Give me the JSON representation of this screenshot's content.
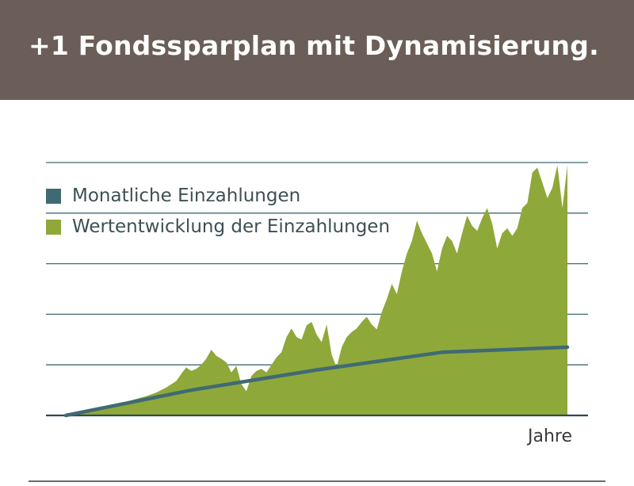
{
  "header": {
    "title": "+1 Fondssparplan mit Dynamisierung."
  },
  "legend": [
    {
      "label": "Monatliche Einzahlungen",
      "color": "#3f6a74"
    },
    {
      "label": "Wertentwicklung der Einzahlungen",
      "color": "#8fa83a"
    }
  ],
  "chart_data": {
    "type": "area",
    "xlabel": "Jahre",
    "ylabel": "",
    "grid": true,
    "gridlines_count": 5,
    "ylim": [
      0,
      5
    ],
    "xlim": [
      0,
      100
    ],
    "legend_position": "top-left",
    "series": [
      {
        "name": "Wertentwicklung der Einzahlungen",
        "type": "area",
        "color": "#8fa83a",
        "x": [
          0,
          4,
          8,
          12,
          16,
          18,
          20,
          22,
          23,
          24,
          25,
          26,
          27,
          28,
          29,
          30,
          31,
          32,
          33,
          34,
          35,
          36,
          37,
          38,
          39,
          40,
          41,
          42,
          43,
          44,
          45,
          46,
          47,
          48,
          49,
          50,
          51,
          52,
          53,
          54,
          55,
          56,
          57,
          58,
          59,
          60,
          61,
          62,
          63,
          64,
          65,
          66,
          67,
          68,
          69,
          70,
          71,
          72,
          73,
          74,
          75,
          76,
          77,
          78,
          79,
          80,
          81,
          82,
          83,
          84,
          85,
          86,
          87,
          88,
          89,
          90,
          91,
          92,
          93,
          94,
          95,
          96,
          97,
          98,
          99,
          100
        ],
        "values": [
          0.02,
          0.08,
          0.17,
          0.27,
          0.38,
          0.45,
          0.55,
          0.68,
          0.82,
          0.95,
          0.88,
          0.92,
          1.0,
          1.12,
          1.3,
          1.18,
          1.12,
          1.05,
          0.85,
          0.98,
          0.62,
          0.48,
          0.78,
          0.88,
          0.92,
          0.85,
          1.0,
          1.15,
          1.25,
          1.55,
          1.72,
          1.55,
          1.5,
          1.78,
          1.85,
          1.6,
          1.45,
          1.8,
          1.2,
          0.95,
          1.35,
          1.55,
          1.65,
          1.72,
          1.85,
          1.95,
          1.8,
          1.7,
          2.05,
          2.3,
          2.6,
          2.4,
          2.85,
          3.2,
          3.45,
          3.85,
          3.6,
          3.4,
          3.2,
          2.85,
          3.3,
          3.55,
          3.45,
          3.2,
          3.6,
          3.95,
          3.75,
          3.65,
          3.9,
          4.1,
          3.8,
          3.3,
          3.6,
          3.7,
          3.55,
          3.7,
          4.1,
          4.2,
          4.8,
          4.9,
          4.6,
          4.3,
          4.5,
          4.95,
          4.1,
          4.95
        ]
      },
      {
        "name": "Monatliche Einzahlungen",
        "type": "line",
        "color": "#3f6a74",
        "x": [
          0,
          25,
          50,
          75,
          100
        ],
        "values": [
          0.0,
          0.5,
          0.9,
          1.25,
          1.35
        ]
      }
    ]
  }
}
